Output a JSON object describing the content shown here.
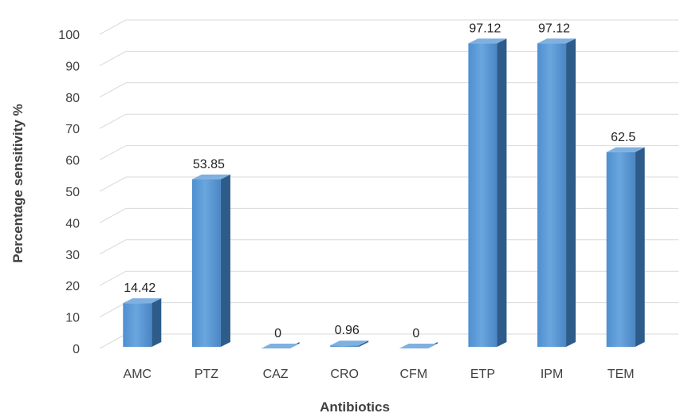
{
  "chart_data": {
    "type": "bar",
    "categories": [
      "AMC",
      "PTZ",
      "CAZ",
      "CRO",
      "CFM",
      "ETP",
      "IPM",
      "TEM"
    ],
    "values": [
      14.42,
      53.85,
      0,
      0.96,
      0,
      97.12,
      97.12,
      62.5
    ],
    "value_labels": [
      "14.42",
      "53.85",
      "0",
      "0.96",
      "0",
      "97.12",
      "97.12",
      "62.5"
    ],
    "xlabel": "Antibiotics",
    "ylabel": "Percentage sensitivity %",
    "ylim": [
      0,
      100
    ],
    "yticks": [
      0,
      10,
      20,
      30,
      40,
      50,
      60,
      70,
      80,
      90,
      100
    ],
    "grid": true,
    "style": "3d-column",
    "colors": {
      "bar_front": "#5b9bd5",
      "bar_side": "#2e5c8a",
      "bar_top": "#7fb0e0",
      "grid": "#d9d9d9"
    }
  }
}
